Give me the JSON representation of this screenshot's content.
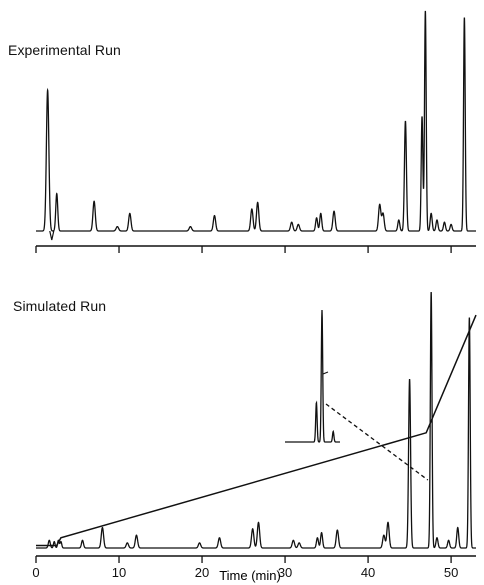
{
  "panels": {
    "top_title": "Experimental Run",
    "bottom_title": "Simulated Run"
  },
  "chart_data": [
    {
      "type": "line",
      "title": "Experimental Run",
      "xlabel": "",
      "ylabel": "",
      "xlim": [
        0,
        53
      ],
      "ticks": [
        0,
        10,
        20,
        30,
        40,
        50
      ],
      "tick_labels_shown": false,
      "grid": false,
      "peaks": [
        {
          "t": 1.4,
          "h": 0.64,
          "w": 0.15
        },
        {
          "t": 2.5,
          "h": 0.17,
          "w": 0.12
        },
        {
          "t": 7.0,
          "h": 0.135,
          "w": 0.14
        },
        {
          "t": 9.8,
          "h": 0.02,
          "w": 0.15
        },
        {
          "t": 11.3,
          "h": 0.08,
          "w": 0.14
        },
        {
          "t": 18.6,
          "h": 0.02,
          "w": 0.15
        },
        {
          "t": 21.5,
          "h": 0.07,
          "w": 0.14
        },
        {
          "t": 26.0,
          "h": 0.1,
          "w": 0.14
        },
        {
          "t": 26.7,
          "h": 0.13,
          "w": 0.14
        },
        {
          "t": 30.8,
          "h": 0.04,
          "w": 0.14
        },
        {
          "t": 31.6,
          "h": 0.03,
          "w": 0.14
        },
        {
          "t": 33.8,
          "h": 0.06,
          "w": 0.12
        },
        {
          "t": 34.3,
          "h": 0.08,
          "w": 0.12
        },
        {
          "t": 35.9,
          "h": 0.09,
          "w": 0.14
        },
        {
          "t": 41.4,
          "h": 0.12,
          "w": 0.14
        },
        {
          "t": 41.8,
          "h": 0.08,
          "w": 0.14
        },
        {
          "t": 43.7,
          "h": 0.05,
          "w": 0.12
        },
        {
          "t": 44.5,
          "h": 0.5,
          "w": 0.12
        },
        {
          "t": 46.5,
          "h": 0.52,
          "w": 0.1
        },
        {
          "t": 46.9,
          "h": 1.0,
          "w": 0.1
        },
        {
          "t": 47.6,
          "h": 0.08,
          "w": 0.12
        },
        {
          "t": 48.3,
          "h": 0.05,
          "w": 0.12
        },
        {
          "t": 49.2,
          "h": 0.04,
          "w": 0.12
        },
        {
          "t": 50.0,
          "h": 0.03,
          "w": 0.12
        },
        {
          "t": 51.6,
          "h": 0.97,
          "w": 0.1
        }
      ]
    },
    {
      "type": "line",
      "title": "Simulated Run",
      "xlabel": "Time (min)",
      "ylabel": "",
      "xlim": [
        0,
        53
      ],
      "ticks": [
        0,
        10,
        20,
        30,
        40,
        50
      ],
      "tick_labels": [
        "0",
        "10",
        "20",
        "30",
        "40",
        "50"
      ],
      "grid": false,
      "peaks": [
        {
          "t": 1.6,
          "h": 0.03,
          "w": 0.12
        },
        {
          "t": 2.2,
          "h": 0.025,
          "w": 0.1
        },
        {
          "t": 2.7,
          "h": 0.03,
          "w": 0.1
        },
        {
          "t": 3.0,
          "h": 0.025,
          "w": 0.1
        },
        {
          "t": 5.6,
          "h": 0.03,
          "w": 0.12
        },
        {
          "t": 8.0,
          "h": 0.08,
          "w": 0.14
        },
        {
          "t": 11.0,
          "h": 0.02,
          "w": 0.14
        },
        {
          "t": 12.1,
          "h": 0.05,
          "w": 0.14
        },
        {
          "t": 19.7,
          "h": 0.02,
          "w": 0.14
        },
        {
          "t": 22.1,
          "h": 0.04,
          "w": 0.14
        },
        {
          "t": 26.1,
          "h": 0.075,
          "w": 0.14
        },
        {
          "t": 26.8,
          "h": 0.1,
          "w": 0.14
        },
        {
          "t": 31.0,
          "h": 0.03,
          "w": 0.14
        },
        {
          "t": 31.7,
          "h": 0.02,
          "w": 0.14
        },
        {
          "t": 33.9,
          "h": 0.04,
          "w": 0.12
        },
        {
          "t": 34.4,
          "h": 0.06,
          "w": 0.12
        },
        {
          "t": 36.3,
          "h": 0.07,
          "w": 0.14
        },
        {
          "t": 41.9,
          "h": 0.05,
          "w": 0.14
        },
        {
          "t": 42.4,
          "h": 0.1,
          "w": 0.14
        },
        {
          "t": 45.0,
          "h": 0.66,
          "w": 0.12
        },
        {
          "t": 47.6,
          "h": 1.0,
          "w": 0.1
        },
        {
          "t": 48.3,
          "h": 0.04,
          "w": 0.12
        },
        {
          "t": 49.7,
          "h": 0.03,
          "w": 0.12
        },
        {
          "t": 50.8,
          "h": 0.08,
          "w": 0.12
        },
        {
          "t": 52.2,
          "h": 0.9,
          "w": 0.1
        }
      ],
      "gradient_line": [
        [
          0,
          0.01
        ],
        [
          2.5,
          0.01
        ],
        [
          3.0,
          0.04
        ],
        [
          47.0,
          0.45
        ],
        [
          53,
          0.91
        ]
      ],
      "inset": {
        "description_shown": false,
        "zoom_of_t": 45.0,
        "peaks_rel": [
          {
            "dt": -0.8,
            "h": 0.3
          },
          {
            "dt": 0.0,
            "h": 1.0
          },
          {
            "dt": 1.6,
            "h": 0.08
          }
        ],
        "dashed_to_t": 47.2
      }
    }
  ]
}
